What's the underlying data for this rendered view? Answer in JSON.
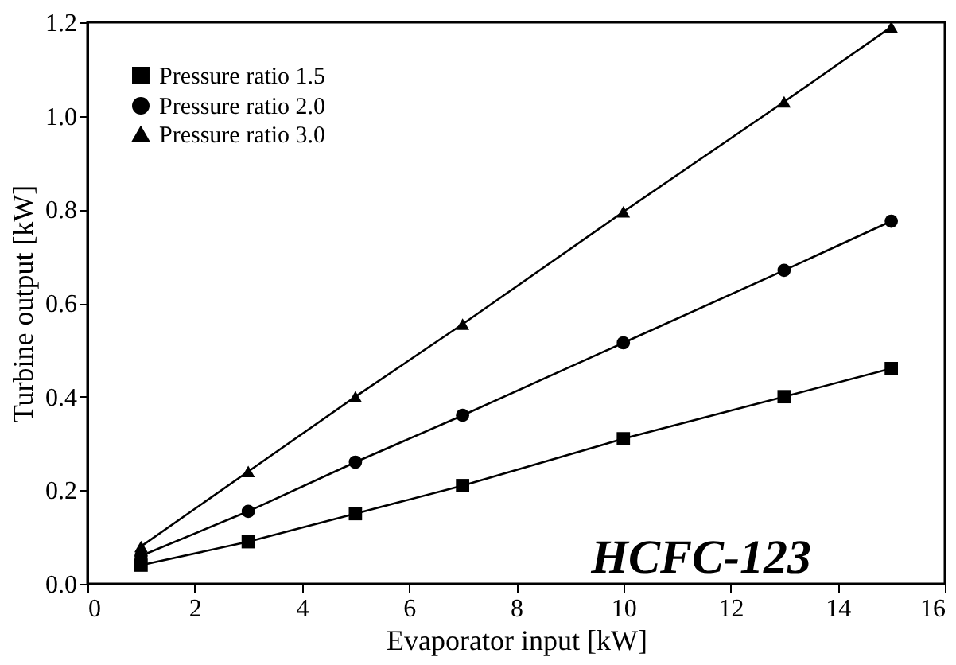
{
  "chart_data": {
    "type": "line",
    "xlabel": "Evaporator input [kW]",
    "ylabel": "Turbine output [kW]",
    "x": [
      1,
      3,
      5,
      7,
      10,
      13,
      15
    ],
    "series": [
      {
        "name": "Pressure ratio 1.5",
        "color": "#000000",
        "marker": "square",
        "values": [
          0.04,
          0.09,
          0.15,
          0.21,
          0.31,
          0.4,
          0.46
        ]
      },
      {
        "name": "Pressure ratio 2.0",
        "color": "#000000",
        "marker": "circle",
        "values": [
          0.06,
          0.155,
          0.26,
          0.36,
          0.515,
          0.67,
          0.775
        ]
      },
      {
        "name": "Pressure ratio 3.0",
        "color": "#000000",
        "marker": "triangle",
        "values": [
          0.08,
          0.24,
          0.4,
          0.555,
          0.795,
          1.03,
          1.19
        ]
      }
    ],
    "xlim": [
      0,
      16
    ],
    "xticks": [
      0,
      2,
      4,
      6,
      8,
      10,
      12,
      14,
      16
    ],
    "ylim": [
      0,
      1.2
    ],
    "yticks": [
      {
        "value": 0,
        "label": "0.0"
      },
      {
        "value": 0.2,
        "label": "0.2"
      },
      {
        "value": 0.4,
        "label": "0.4"
      },
      {
        "value": 0.6,
        "label": "0.6"
      },
      {
        "value": 0.8,
        "label": "0.8"
      },
      {
        "value": 1.0,
        "label": "1.0"
      },
      {
        "value": 1.2,
        "label": "1.2"
      }
    ],
    "grid": false,
    "legend": "top left",
    "line_style": "solid",
    "annotations": [
      "HCFC-123"
    ]
  }
}
